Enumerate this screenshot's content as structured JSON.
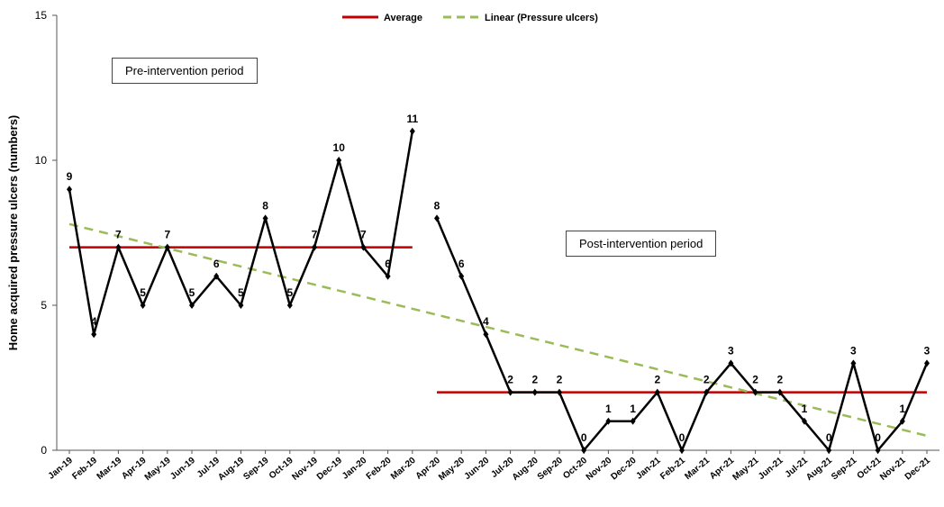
{
  "chart_data": {
    "type": "line",
    "ylabel": "Home acquired pressure ulcers (numbers)",
    "xlabel": "",
    "ylim": [
      0,
      15
    ],
    "yticks": [
      0,
      5,
      10,
      15
    ],
    "categories": [
      "Jan-19",
      "Feb-19",
      "Mar-19",
      "Apr-19",
      "May-19",
      "Jun-19",
      "Jul-19",
      "Aug-19",
      "Sep-19",
      "Oct-19",
      "Nov-19",
      "Dec-19",
      "Jan-20",
      "Feb-20",
      "Mar-20",
      "Apr-20",
      "May-20",
      "Jun-20",
      "Jul-20",
      "Aug-20",
      "Sep-20",
      "Oct-20",
      "Nov-20",
      "Dec-20",
      "Jan-21",
      "Feb-21",
      "Mar-21",
      "Apr-21",
      "May-21",
      "Jun-21",
      "Jul-21",
      "Aug-21",
      "Sep-21",
      "Oct-21",
      "Nov-21",
      "Dec-21"
    ],
    "series": [
      {
        "segments": [
          {
            "start": 0,
            "values": [
              9,
              4,
              7,
              5,
              7,
              5,
              6,
              5,
              8,
              5,
              7,
              10,
              7,
              6,
              11
            ]
          },
          {
            "start": 15,
            "values": [
              8,
              6,
              4,
              2,
              2,
              2,
              0,
              1,
              1,
              2,
              0,
              2,
              3,
              2,
              2,
              1,
              0,
              3,
              0,
              1,
              3
            ]
          }
        ],
        "color": "#000000"
      }
    ],
    "data_labels": [
      "9",
      "4",
      "7",
      "5",
      "7",
      "5",
      "6",
      "5",
      "8",
      "5",
      "7",
      "10",
      "7",
      "6",
      "11",
      "8",
      "6",
      "4",
      "2",
      "2",
      "2",
      "0",
      "1",
      "1",
      "2",
      "0",
      "2",
      "3",
      "2",
      "2",
      "1",
      "0",
      "3",
      "0",
      "1",
      "3"
    ],
    "averages": [
      {
        "from": "Jan-19",
        "to": "Mar-20",
        "value": 7
      },
      {
        "from": "Apr-20",
        "to": "Dec-21",
        "value": 2
      }
    ],
    "trendline": {
      "start_value": 7.8,
      "end_value": 0.5
    },
    "legend": {
      "placement": "top-center",
      "items": [
        {
          "name": "Average",
          "color": "#c00000",
          "style": "solid"
        },
        {
          "name": "Linear (Pressure ulcers)",
          "color": "#9bbb59",
          "style": "dashed"
        }
      ]
    },
    "annotations": [
      "Pre-intervention period",
      "Post-intervention period"
    ]
  }
}
